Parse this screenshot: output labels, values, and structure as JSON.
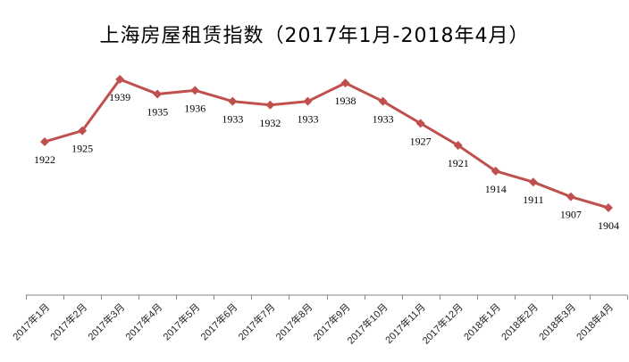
{
  "chart_data": {
    "type": "line",
    "title": "上海房屋租赁指数（2017年1月-2018年4月）",
    "xlabel": "",
    "ylabel": "",
    "grid": false,
    "legend": "none",
    "ylim": [
      1870,
      1945
    ],
    "categories": [
      "2017年1月",
      "2017年2月",
      "2017年3月",
      "2017年4月",
      "2017年5月",
      "2017年6月",
      "2017年7月",
      "2017年8月",
      "2017年9月",
      "2017年10月",
      "2017年11月",
      "2017年12月",
      "2018年1月",
      "2018年2月",
      "2018年3月",
      "2018年4月"
    ],
    "series": [
      {
        "name": "上海房屋租赁指数",
        "color": "#C0504D",
        "marker": "diamond",
        "values": [
          1922,
          1925,
          1939,
          1935,
          1936,
          1933,
          1932,
          1933,
          1938,
          1933,
          1927,
          1921,
          1914,
          1911,
          1907,
          1904
        ]
      }
    ]
  }
}
